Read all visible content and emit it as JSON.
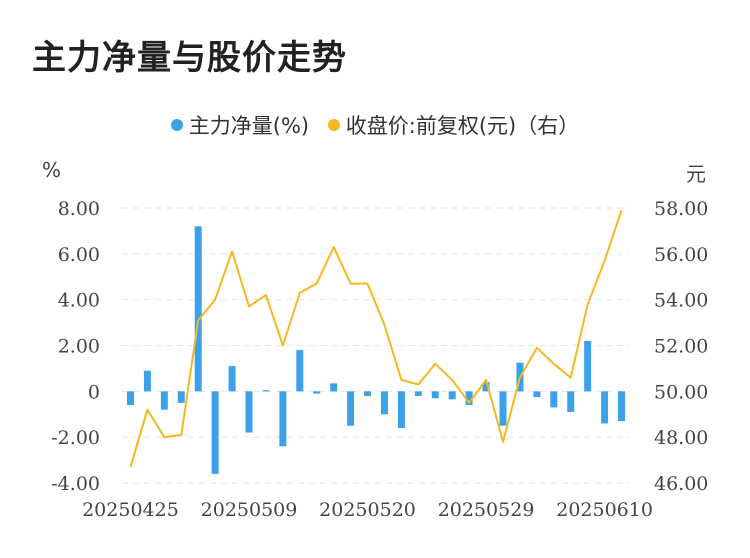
{
  "title": "主力净量与股价走势",
  "legend": [
    {
      "label": "主力净量(%)",
      "color": "#3ba2ea"
    },
    {
      "label": "收盘价:前复权(元)（右）",
      "color": "#f5b820"
    }
  ],
  "units": {
    "left": "%",
    "right": "元"
  },
  "chart_data": {
    "type": "bar+line",
    "title": "主力净量与股价走势",
    "x_labels": [
      "20250425",
      "20250509",
      "20250520",
      "20250529",
      "20250610"
    ],
    "x_label_indices": [
      0,
      7,
      14,
      21,
      28
    ],
    "left_axis": {
      "label": "%",
      "ylim": [
        -4,
        8
      ],
      "ticks": [
        "8.00",
        "6.00",
        "4.00",
        "2.00",
        "0",
        "-2.00",
        "-4.00"
      ],
      "tick_values": [
        8,
        6,
        4,
        2,
        0,
        -2,
        -4
      ]
    },
    "right_axis": {
      "label": "元",
      "ylim": [
        46,
        58
      ],
      "ticks": [
        "58.00",
        "56.00",
        "54.00",
        "52.00",
        "50.00",
        "48.00",
        "46.00"
      ],
      "tick_values": [
        58,
        56,
        54,
        52,
        50,
        48,
        46
      ]
    },
    "series": [
      {
        "name": "主力净量(%)",
        "type": "bar",
        "axis": "left",
        "color": "#3ba2ea",
        "values": [
          -0.6,
          0.9,
          -0.8,
          -0.5,
          7.2,
          -3.6,
          1.1,
          -1.8,
          0.05,
          -2.4,
          1.8,
          -0.1,
          0.35,
          -1.5,
          -0.2,
          -1.0,
          -1.6,
          -0.2,
          -0.3,
          -0.35,
          -0.6,
          0.4,
          -1.5,
          1.25,
          -0.25,
          -0.7,
          -0.9,
          2.2,
          -1.4,
          -1.3
        ]
      },
      {
        "name": "收盘价:前复权(元)（右）",
        "type": "line",
        "axis": "right",
        "color": "#f5b820",
        "values": [
          46.7,
          49.2,
          48.0,
          48.1,
          53.1,
          54.0,
          56.1,
          53.7,
          54.2,
          52.0,
          54.3,
          54.7,
          56.3,
          54.7,
          54.7,
          52.9,
          50.5,
          50.3,
          51.2,
          50.5,
          49.5,
          50.5,
          47.8,
          50.6,
          51.9,
          51.2,
          50.6,
          53.8,
          55.7,
          57.9
        ]
      }
    ]
  }
}
